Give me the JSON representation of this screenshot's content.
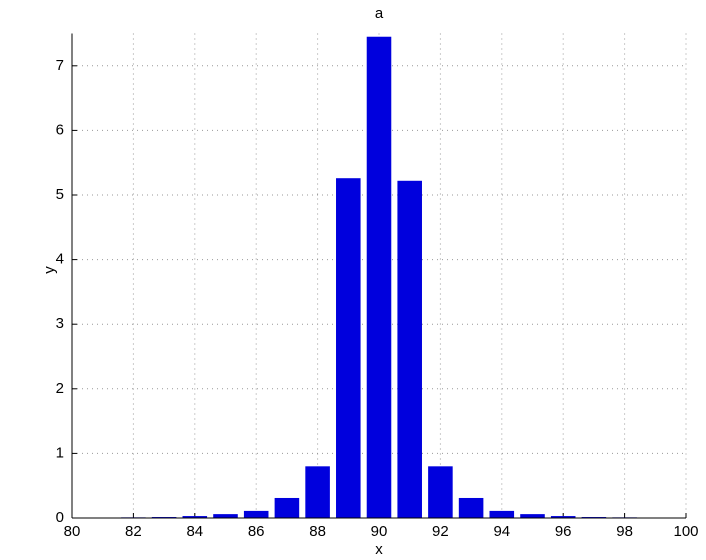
{
  "chart_data": {
    "type": "bar",
    "title": "a",
    "x_label": "x",
    "y_label": "y",
    "x": [
      81,
      82,
      83,
      84,
      85,
      86,
      87,
      88,
      89,
      90,
      91,
      92,
      93,
      94,
      95,
      96,
      97,
      98,
      99
    ],
    "values": [
      0.005,
      0.01,
      0.015,
      0.03,
      0.06,
      0.11,
      0.31,
      0.8,
      5.26,
      7.45,
      5.22,
      0.8,
      0.31,
      0.11,
      0.06,
      0.03,
      0.015,
      0.01,
      0.005
    ],
    "color": "#0000dd",
    "xlim": [
      80,
      100
    ],
    "xticks": [
      80,
      82,
      84,
      86,
      88,
      90,
      92,
      94,
      96,
      98,
      100
    ],
    "ylim": [
      0,
      7.5
    ],
    "yticks": [
      0,
      1,
      2,
      3,
      4,
      5,
      6,
      7
    ],
    "grid": true
  }
}
